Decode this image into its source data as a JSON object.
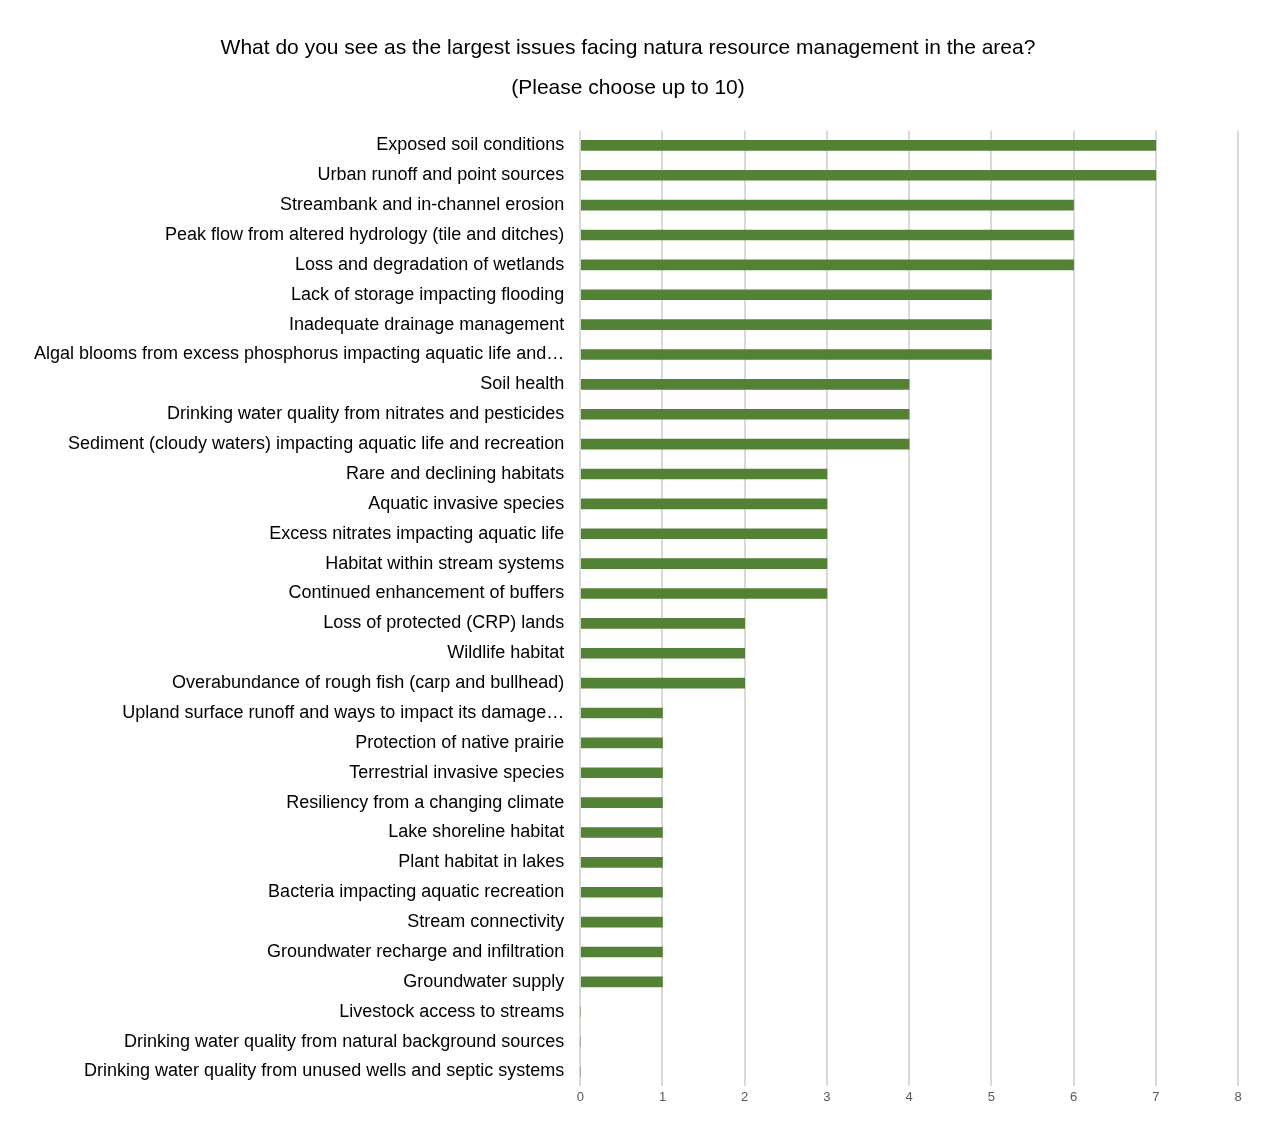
{
  "chart_data": {
    "type": "bar",
    "orientation": "horizontal",
    "title": "What do you see as the largest issues facing natura resource management in the area?",
    "subtitle": "(Please choose up to 10)",
    "categories": [
      "Exposed soil conditions",
      "Urban runoff and point sources",
      "Streambank and in-channel erosion",
      "Peak flow from altered hydrology (tile and ditches)",
      "Loss and degradation of wetlands",
      "Lack of storage impacting flooding",
      "Inadequate drainage management",
      "Algal blooms from excess phosphorus impacting aquatic life and…",
      "Soil health",
      "Drinking water quality from nitrates and pesticides",
      "Sediment (cloudy waters) impacting aquatic life and recreation",
      "Rare and declining habitats",
      "Aquatic invasive species",
      "Excess nitrates impacting aquatic life",
      "Habitat within stream systems",
      "Continued enhancement of buffers",
      "Loss of protected (CRP) lands",
      "Wildlife habitat",
      "Overabundance of rough fish (carp and bullhead)",
      "Upland surface runoff and ways to impact its damage…",
      "Protection of native prairie",
      "Terrestrial invasive species",
      "Resiliency from a changing climate",
      "Lake shoreline habitat",
      "Plant habitat in lakes",
      "Bacteria impacting aquatic recreation",
      "Stream connectivity",
      "Groundwater recharge and infiltration",
      "Groundwater supply",
      "Livestock access to streams",
      "Drinking water quality from natural background sources",
      "Drinking water quality from unused wells and septic systems"
    ],
    "values": [
      7,
      7,
      6,
      6,
      6,
      5,
      5,
      5,
      4,
      4,
      4,
      3,
      3,
      3,
      3,
      3,
      2,
      2,
      2,
      1,
      1,
      1,
      1,
      1,
      1,
      1,
      1,
      1,
      1,
      0,
      0,
      0
    ],
    "color": "#548235",
    "xlim": [
      0,
      8
    ],
    "xticks": [
      0,
      1,
      2,
      3,
      4,
      5,
      6,
      7,
      8
    ],
    "grid": "x",
    "legend": false
  }
}
